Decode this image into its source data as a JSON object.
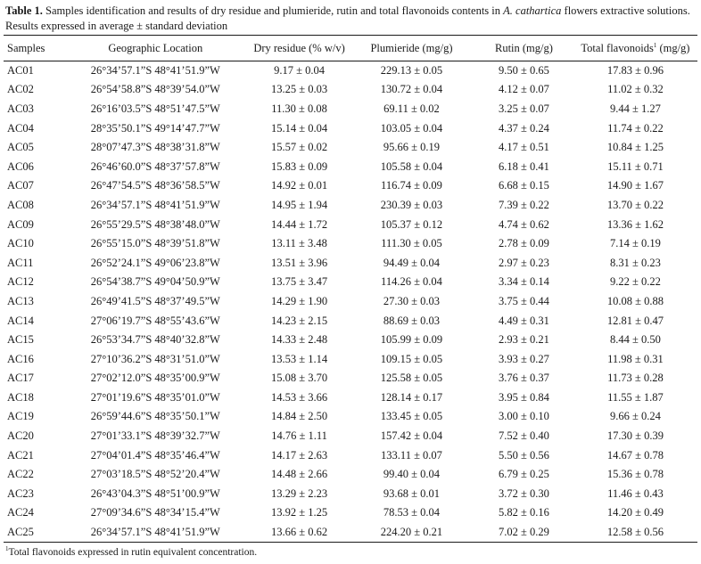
{
  "caption": {
    "label": "Table 1.",
    "text_before": " Samples identification and results of dry residue and plumieride, rutin and total flavonoids contents in ",
    "species": "A. cathartica",
    "text_after": " flowers extractive solutions. Results expressed in average ± standard deviation"
  },
  "headers": {
    "samples": "Samples",
    "location": "Geographic Location",
    "dry": "Dry residue (% w/v)",
    "plum": "Plumieride (mg/g)",
    "rutin": "Rutin (mg/g)",
    "flav": "Total flavonoids",
    "flav_sup": "1",
    "flav_unit": " (mg/g)"
  },
  "rows": [
    [
      "AC01",
      "26°34’57.1”S 48°41’51.9”W",
      "9.17 ± 0.04",
      "229.13 ± 0.05",
      "9.50 ± 0.65",
      "17.83 ± 0.96"
    ],
    [
      "AC02",
      "26°54’58.8”S 48°39’54.0”W",
      "13.25 ± 0.03",
      "130.72 ± 0.04",
      "4.12 ± 0.07",
      "11.02 ± 0.32"
    ],
    [
      "AC03",
      "26°16’03.5”S 48°51’47.5”W",
      "11.30 ± 0.08",
      "69.11 ± 0.02",
      "3.25 ± 0.07",
      "9.44 ± 1.27"
    ],
    [
      "AC04",
      "28°35’50.1”S 49°14’47.7”W",
      "15.14 ± 0.04",
      "103.05 ± 0.04",
      "4.37 ± 0.24",
      "11.74 ± 0.22"
    ],
    [
      "AC05",
      "28°07’47.3”S 48°38’31.8”W",
      "15.57 ± 0.02",
      "95.66 ± 0.19",
      "4.17 ± 0.51",
      "10.84 ± 1.25"
    ],
    [
      "AC06",
      "26°46’60.0”S 48°37’57.8”W",
      "15.83 ± 0.09",
      "105.58 ± 0.04",
      "6.18 ± 0.41",
      "15.11 ± 0.71"
    ],
    [
      "AC07",
      "26°47’54.5”S 48°36’58.5”W",
      "14.92 ± 0.01",
      "116.74 ± 0.09",
      "6.68 ± 0.15",
      "14.90 ± 1.67"
    ],
    [
      "AC08",
      "26°34’57.1”S 48°41’51.9”W",
      "14.95 ± 1.94",
      "230.39 ± 0.03",
      "7.39 ± 0.22",
      "13.70 ± 0.22"
    ],
    [
      "AC09",
      "26°55’29.5”S 48°38’48.0”W",
      "14.44 ± 1.72",
      "105.37 ± 0.12",
      "4.74 ± 0.62",
      "13.36 ± 1.62"
    ],
    [
      "AC10",
      "26°55’15.0”S 48°39’51.8”W",
      "13.11 ± 3.48",
      "111.30 ± 0.05",
      "2.78 ± 0.09",
      "7.14 ± 0.19"
    ],
    [
      "AC11",
      "26°52’24.1”S 49°06’23.8”W",
      "13.51 ± 3.96",
      "94.49 ± 0.04",
      "2.97 ± 0.23",
      "8.31 ± 0.23"
    ],
    [
      "AC12",
      "26°54’38.7”S 49°04’50.9”W",
      "13.75 ± 3.47",
      "114.26 ± 0.04",
      "3.34 ± 0.14",
      "9.22 ± 0.22"
    ],
    [
      "AC13",
      "26°49’41.5”S 48°37’49.5”W",
      "14.29 ± 1.90",
      "27.30 ± 0.03",
      "3.75 ± 0.44",
      "10.08 ± 0.88"
    ],
    [
      "AC14",
      "27°06’19.7”S 48°55’43.6”W",
      "14.23 ± 2.15",
      "88.69 ± 0.03",
      "4.49 ± 0.31",
      "12.81 ± 0.47"
    ],
    [
      "AC15",
      "26°53’34.7”S 48°40’32.8”W",
      "14.33 ± 2.48",
      "105.99 ± 0.09",
      "2.93 ± 0.21",
      "8.44 ± 0.50"
    ],
    [
      "AC16",
      "27°10’36.2”S 48°31’51.0”W",
      "13.53 ± 1.14",
      "109.15 ± 0.05",
      "3.93 ± 0.27",
      "11.98 ± 0.31"
    ],
    [
      "AC17",
      "27°02’12.0”S 48°35’00.9”W",
      "15.08 ± 3.70",
      "125.58 ± 0.05",
      "3.76 ± 0.37",
      "11.73 ± 0.28"
    ],
    [
      "AC18",
      "27°01’19.6”S 48°35’01.0”W",
      "14.53 ± 3.66",
      "128.14 ± 0.17",
      "3.95 ± 0.84",
      "11.55 ± 1.87"
    ],
    [
      "AC19",
      "26°59’44.6”S 48°35’50.1”W",
      "14.84 ± 2.50",
      "133.45 ± 0.05",
      "3.00 ± 0.10",
      "9.66 ± 0.24"
    ],
    [
      "AC20",
      "27°01’33.1”S 48°39’32.7”W",
      "14.76 ± 1.11",
      "157.42 ± 0.04",
      "7.52 ± 0.40",
      "17.30 ± 0.39"
    ],
    [
      "AC21",
      "27°04’01.4”S 48°35’46.4”W",
      "14.17 ± 2.63",
      "133.11 ± 0.07",
      "5.50 ± 0.56",
      "14.67 ± 0.78"
    ],
    [
      "AC22",
      "27°03’18.5”S 48°52’20.4”W",
      "14.48 ± 2.66",
      "99.40 ± 0.04",
      "6.79 ± 0.25",
      "15.36 ± 0.78"
    ],
    [
      "AC23",
      "26°43’04.3”S 48°51’00.9”W",
      "13.29 ± 2.23",
      "93.68 ± 0.01",
      "3.72 ± 0.30",
      "11.46 ± 0.43"
    ],
    [
      "AC24",
      "27°09’34.6”S 48°34’15.4”W",
      "13.92 ± 1.25",
      "78.53 ± 0.04",
      "5.82 ± 0.16",
      "14.20 ± 0.49"
    ],
    [
      "AC25",
      "26°34’57.1”S 48°41’51.9”W",
      "13.66 ± 0.62",
      "224.20 ± 0.21",
      "7.02 ± 0.29",
      "12.58 ± 0.56"
    ]
  ],
  "footnote": {
    "sup": "1",
    "text": "Total flavonoids expressed in rutin equivalent concentration."
  }
}
